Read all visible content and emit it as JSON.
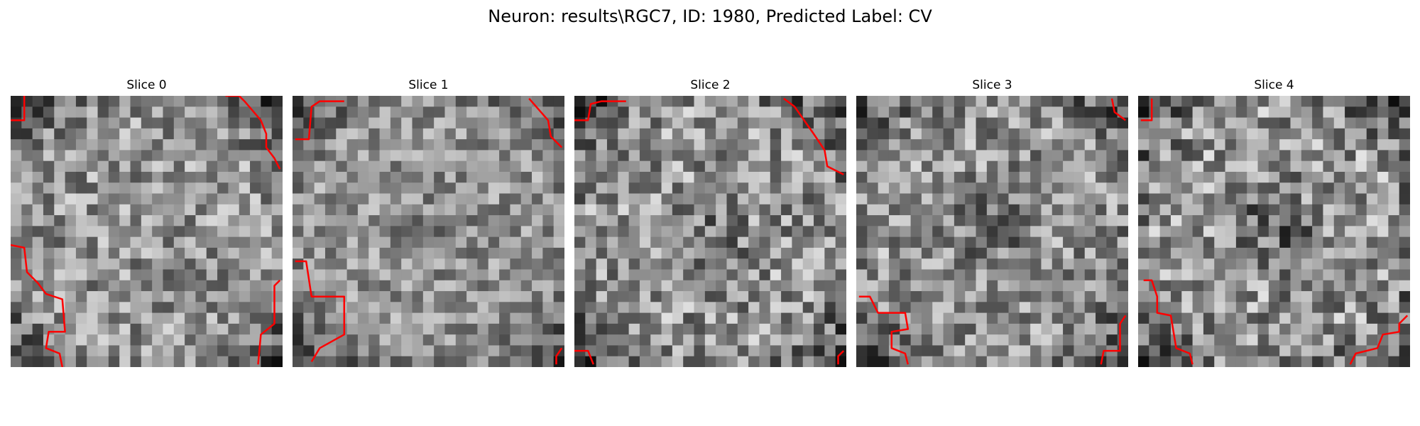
{
  "figure": {
    "title": "Neuron: results\\RGC7, ID: 1980, Predicted Label: CV"
  },
  "panels": [
    {
      "title": "Slice 0",
      "seed": 11,
      "contrast": 1.0,
      "dark_center": 0.0,
      "contours": [
        [
          [
            0,
            0.09
          ],
          [
            0.05,
            0.09
          ],
          [
            0.05,
            0.0
          ]
        ],
        [
          [
            0.79,
            0.0
          ],
          [
            0.84,
            0.0
          ],
          [
            0.86,
            0.02
          ],
          [
            0.92,
            0.09
          ],
          [
            0.94,
            0.14
          ],
          [
            0.94,
            0.19
          ],
          [
            0.97,
            0.23
          ],
          [
            0.99,
            0.27
          ]
        ],
        [
          [
            0.0,
            0.55
          ],
          [
            0.05,
            0.56
          ],
          [
            0.06,
            0.65
          ],
          [
            0.1,
            0.69
          ],
          [
            0.13,
            0.73
          ],
          [
            0.19,
            0.75
          ],
          [
            0.2,
            0.87
          ],
          [
            0.14,
            0.87
          ],
          [
            0.13,
            0.93
          ],
          [
            0.18,
            0.95
          ],
          [
            0.19,
            1.0
          ]
        ],
        [
          [
            0.99,
            0.68
          ],
          [
            0.97,
            0.7
          ],
          [
            0.97,
            0.84
          ],
          [
            0.92,
            0.88
          ],
          [
            0.91,
            0.99
          ]
        ]
      ]
    },
    {
      "title": "Slice 1",
      "seed": 29,
      "contrast": 0.85,
      "dark_center": 0.12,
      "contours": [
        [
          [
            0.01,
            0.16
          ],
          [
            0.06,
            0.16
          ],
          [
            0.07,
            0.04
          ],
          [
            0.1,
            0.02
          ],
          [
            0.19,
            0.02
          ]
        ],
        [
          [
            0.87,
            0.01
          ],
          [
            0.94,
            0.09
          ],
          [
            0.95,
            0.15
          ],
          [
            0.99,
            0.19
          ]
        ],
        [
          [
            0.01,
            0.61
          ],
          [
            0.05,
            0.61
          ],
          [
            0.07,
            0.74
          ],
          [
            0.19,
            0.74
          ],
          [
            0.19,
            0.88
          ],
          [
            0.1,
            0.93
          ],
          [
            0.07,
            0.98
          ]
        ],
        [
          [
            0.99,
            0.93
          ],
          [
            0.97,
            0.96
          ],
          [
            0.97,
            0.99
          ]
        ]
      ]
    },
    {
      "title": "Slice 2",
      "seed": 47,
      "contrast": 1.1,
      "dark_center": 0.25,
      "contours": [
        [
          [
            0.0,
            0.09
          ],
          [
            0.05,
            0.09
          ],
          [
            0.06,
            0.03
          ],
          [
            0.1,
            0.02
          ],
          [
            0.19,
            0.02
          ]
        ],
        [
          [
            0.77,
            0.01
          ],
          [
            0.81,
            0.04
          ],
          [
            0.88,
            0.14
          ],
          [
            0.92,
            0.2
          ],
          [
            0.93,
            0.26
          ],
          [
            0.99,
            0.29
          ]
        ],
        [
          [
            0.0,
            0.94
          ],
          [
            0.05,
            0.94
          ],
          [
            0.07,
            0.99
          ]
        ],
        [
          [
            0.99,
            0.94
          ],
          [
            0.97,
            0.96
          ],
          [
            0.97,
            0.99
          ]
        ]
      ]
    },
    {
      "title": "Slice 3",
      "seed": 63,
      "contrast": 1.05,
      "dark_center": 0.3,
      "contours": [
        [
          [
            0.94,
            0.01
          ],
          [
            0.95,
            0.06
          ],
          [
            0.99,
            0.09
          ]
        ],
        [
          [
            0.01,
            0.74
          ],
          [
            0.05,
            0.74
          ],
          [
            0.08,
            0.8
          ],
          [
            0.18,
            0.8
          ],
          [
            0.19,
            0.86
          ],
          [
            0.13,
            0.87
          ],
          [
            0.13,
            0.93
          ],
          [
            0.18,
            0.95
          ],
          [
            0.19,
            0.99
          ]
        ],
        [
          [
            0.99,
            0.81
          ],
          [
            0.97,
            0.84
          ],
          [
            0.97,
            0.94
          ],
          [
            0.91,
            0.94
          ],
          [
            0.9,
            0.99
          ]
        ]
      ]
    },
    {
      "title": "Slice 4",
      "seed": 81,
      "contrast": 1.15,
      "dark_center": 0.45,
      "contours": [
        [
          [
            0.01,
            0.09
          ],
          [
            0.05,
            0.09
          ],
          [
            0.05,
            0.01
          ]
        ],
        [
          [
            0.02,
            0.68
          ],
          [
            0.05,
            0.68
          ],
          [
            0.07,
            0.74
          ],
          [
            0.07,
            0.8
          ],
          [
            0.12,
            0.81
          ],
          [
            0.13,
            0.87
          ],
          [
            0.14,
            0.93
          ],
          [
            0.19,
            0.95
          ],
          [
            0.2,
            0.99
          ]
        ],
        [
          [
            0.99,
            0.81
          ],
          [
            0.96,
            0.84
          ],
          [
            0.96,
            0.87
          ],
          [
            0.9,
            0.88
          ],
          [
            0.88,
            0.93
          ],
          [
            0.8,
            0.95
          ],
          [
            0.78,
            0.99
          ]
        ]
      ]
    }
  ],
  "colors": {
    "contour": "#ff0000"
  }
}
